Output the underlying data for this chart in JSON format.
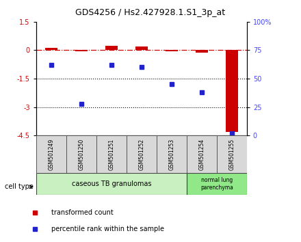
{
  "title": "GDS4256 / Hs2.427928.1.S1_3p_at",
  "samples": [
    "GSM501249",
    "GSM501250",
    "GSM501251",
    "GSM501252",
    "GSM501253",
    "GSM501254",
    "GSM501255"
  ],
  "transformed_count": [
    0.12,
    -0.07,
    0.22,
    0.18,
    -0.07,
    -0.12,
    -4.3
  ],
  "percentile_rank": [
    62,
    28,
    62,
    60,
    45,
    38,
    2
  ],
  "ylim_left": [
    -4.5,
    1.5
  ],
  "ylim_right": [
    0,
    100
  ],
  "yticks_left": [
    1.5,
    0,
    -1.5,
    -3,
    -4.5
  ],
  "ytick_labels_left": [
    "1.5",
    "0",
    "-1.5",
    "-3",
    "-4.5"
  ],
  "yticks_right": [
    0,
    25,
    50,
    75,
    100
  ],
  "ytick_labels_right": [
    "0",
    "25",
    "50",
    "75",
    "100%"
  ],
  "cell_type_label": "cell type",
  "legend_red": "transformed count",
  "legend_blue": "percentile rank within the sample",
  "bar_color_red": "#cc0000",
  "bar_color_blue": "#2222cc",
  "line_color_red": "#cc0000",
  "bg_color": "#ffffff",
  "tick_label_color_left": "#cc0000",
  "tick_label_color_right": "#4444ff",
  "ct1_label": "caseous TB granulomas",
  "ct1_color": "#c8f0c0",
  "ct2_label": "normal lung\nparenchyma",
  "ct2_color": "#90e888"
}
